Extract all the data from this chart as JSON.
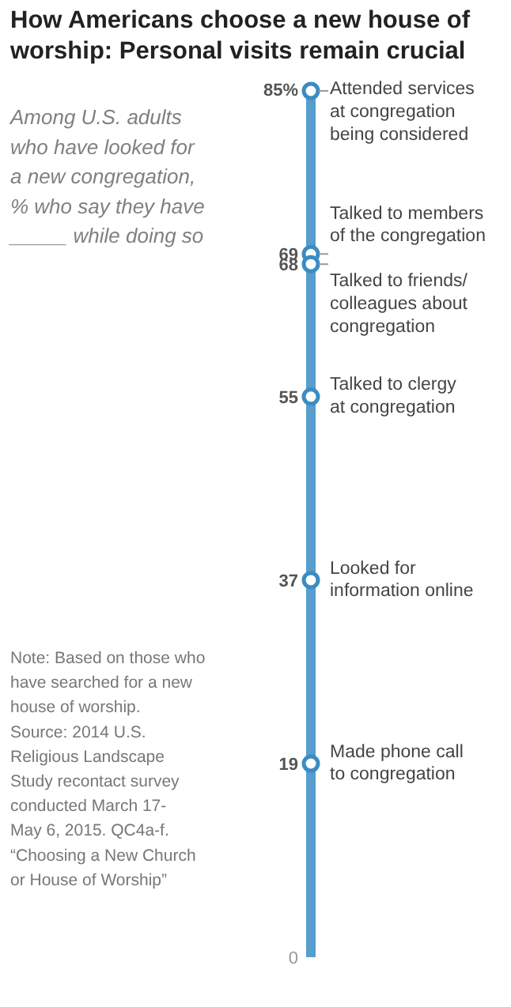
{
  "chart_data": {
    "type": "other",
    "title": "How Americans choose a new house of\nworship: Personal visits remain crucial",
    "subtitle": "Among U.S. adults\nwho have looked for\na new congregation,\n% who say they have\n_____ while doing so",
    "categories": [
      "Attended services\nat congregation\nbeing considered",
      "Talked to members\nof the congregation",
      "Talked to friends/\ncolleagues about\ncongregation",
      "Talked to clergy\nat congregation",
      "Looked for\ninformation online",
      "Made phone call\nto congregation"
    ],
    "values": [
      85,
      69,
      68,
      55,
      37,
      19
    ],
    "value_labels": [
      "85%",
      "69",
      "68",
      "55",
      "37",
      "19"
    ],
    "color": "#3a8cc4",
    "annotations": [
      "0",
      "Note: Based on those who\nhave searched for a new\nhouse of worship.\nSource: 2014 U.S.\nReligious Landscape\nStudy recontact survey\nconducted March 17-\nMay 6, 2015. QC4a-f.\n“Choosing a New Church\nor House of Worship”"
    ]
  }
}
